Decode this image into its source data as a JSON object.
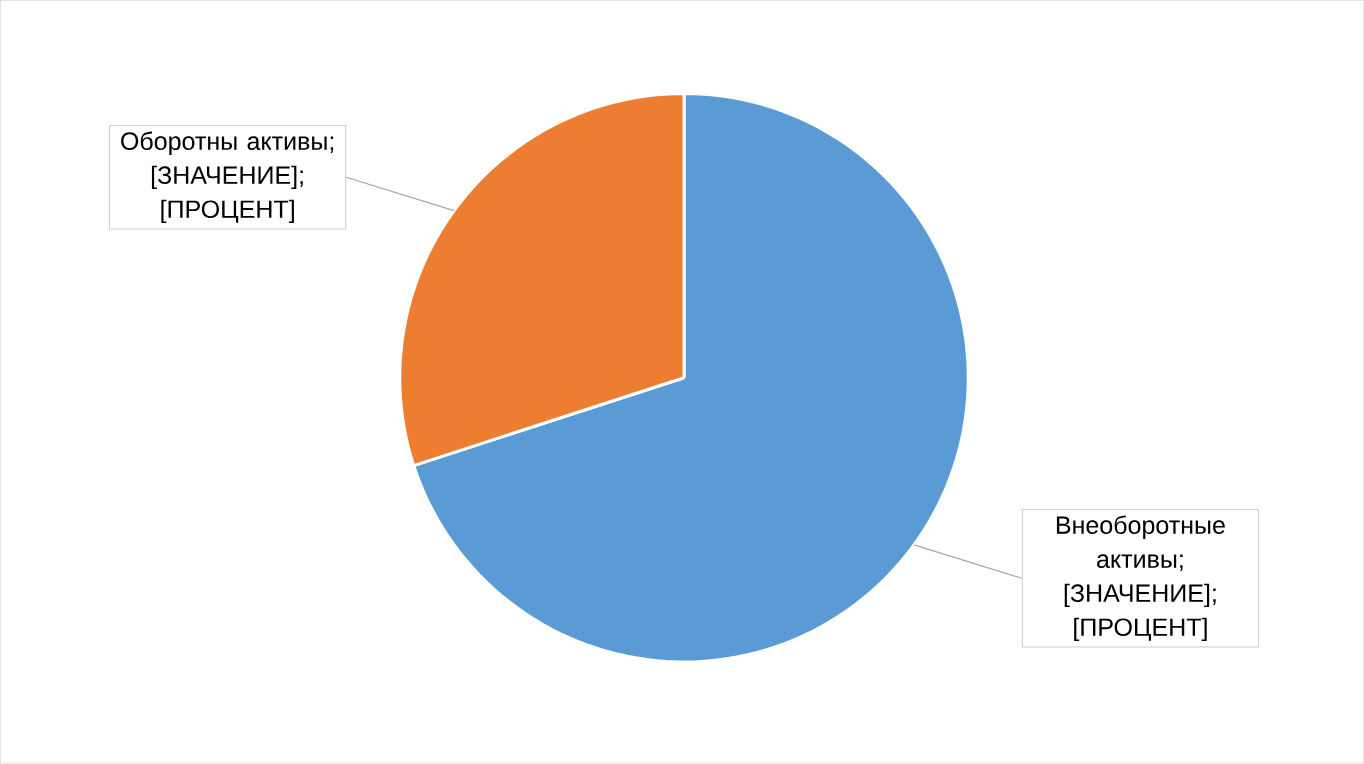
{
  "chart_data": {
    "type": "pie",
    "categories": [
      "Внеоборотные активы",
      "Оборотны активы"
    ],
    "values": [
      70,
      30
    ],
    "colors": [
      "#5b9bd5",
      "#ed7d31"
    ],
    "value_labels": [
      "; [ЗНАЧЕНИЕ]; [ПРОЦЕНТ]",
      "; [ЗНАЧЕНИЕ]; [ПРОЦЕНТ]"
    ],
    "legend": false
  }
}
